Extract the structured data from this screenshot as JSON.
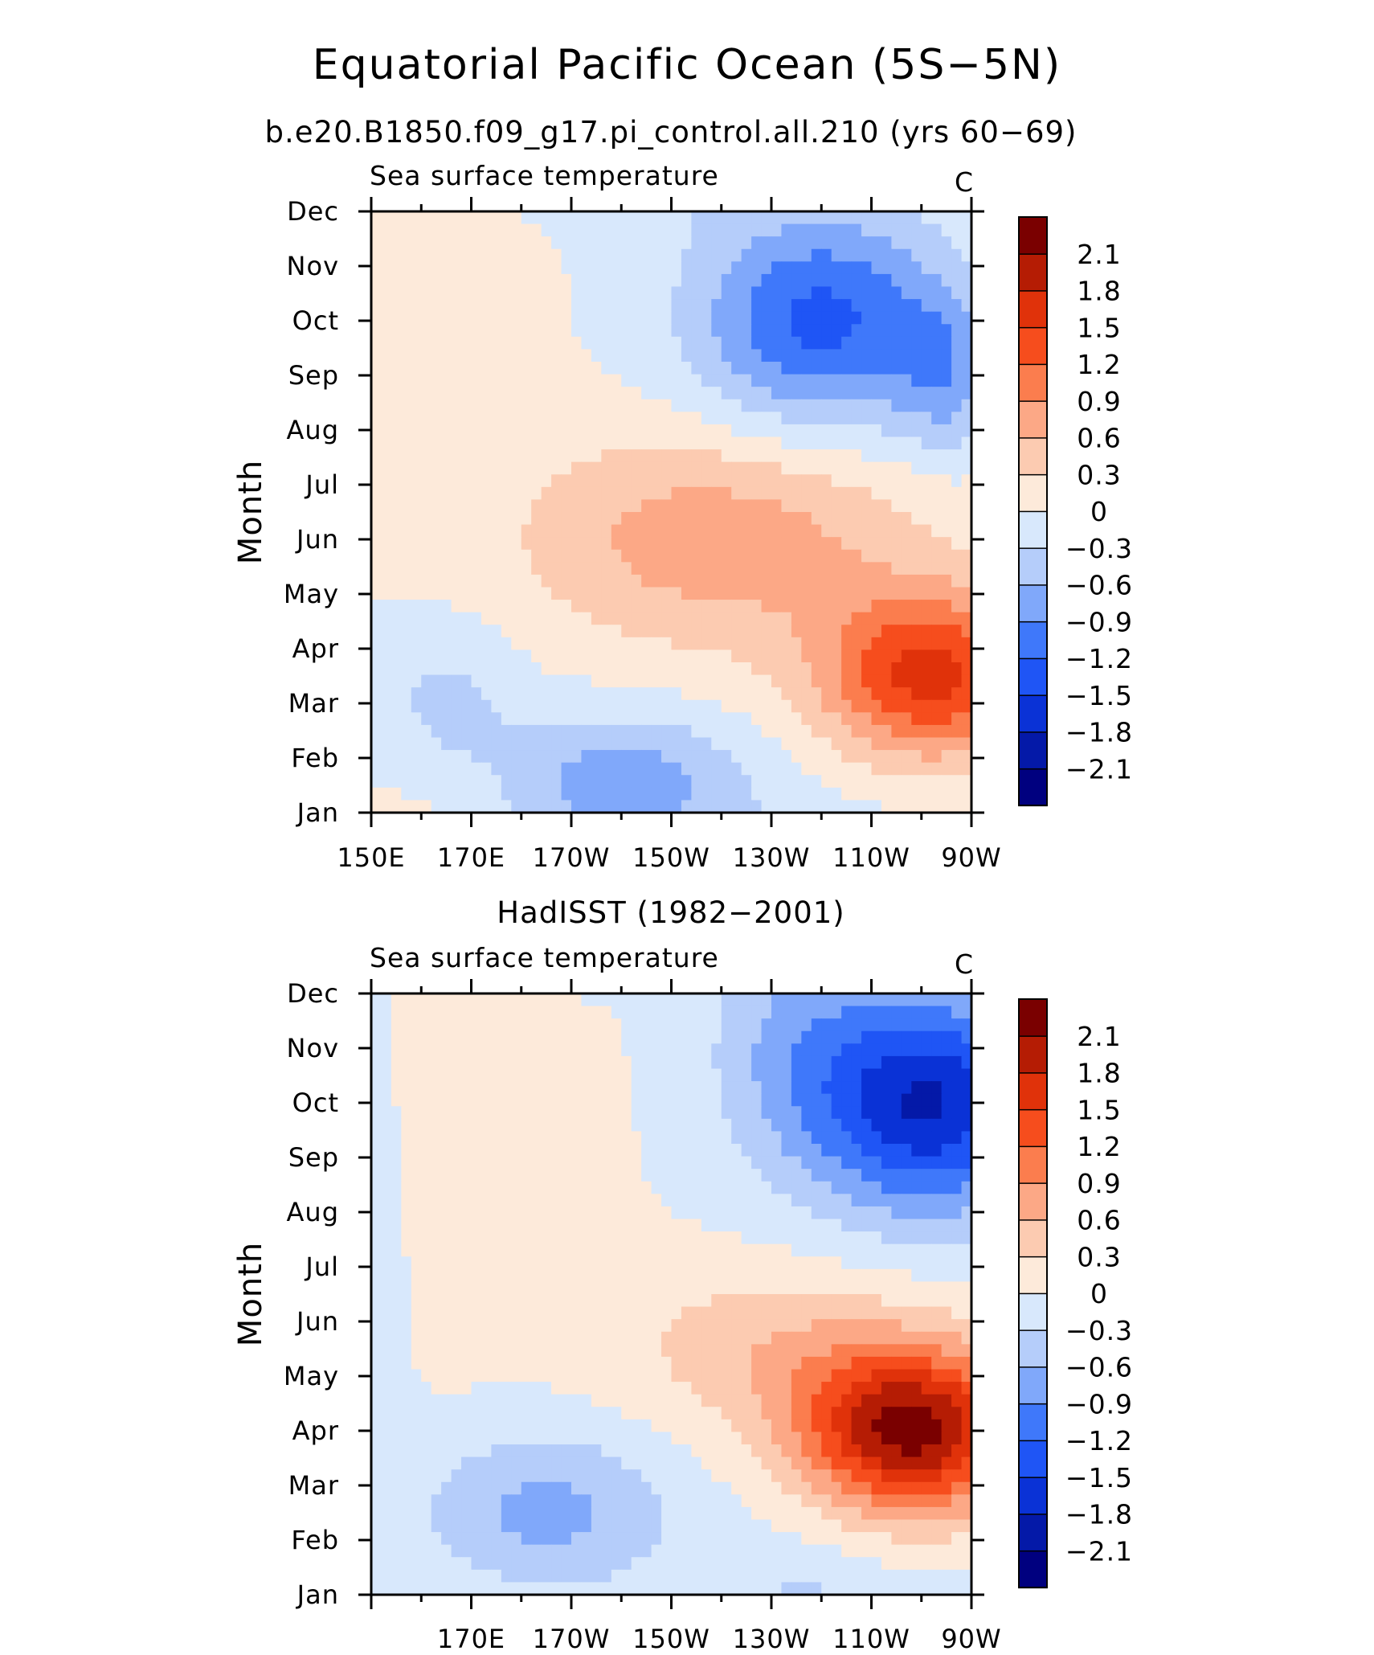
{
  "figure": {
    "title": "Equatorial Pacific Ocean (5S−5N)",
    "subtitle": "b.e20.B1850.f09_g17.pi_control.all.210 (yrs 60−69)"
  },
  "chart_data": [
    {
      "type": "heatmap",
      "panel_title": "",
      "left_label": "Sea surface temperature",
      "units": "C",
      "ylabel": "Month",
      "xlabel": "",
      "x_range_deg_east": [
        150,
        270
      ],
      "x_tick_labels": [
        "150E",
        "170E",
        "170W",
        "150W",
        "130W",
        "110W",
        "90W"
      ],
      "y_tick_labels": [
        "Jan",
        "Feb",
        "Mar",
        "Apr",
        "May",
        "Jun",
        "Jul",
        "Aug",
        "Sep",
        "Oct",
        "Nov",
        "Dec"
      ],
      "contour_levels": [
        -2.1,
        -1.8,
        -1.5,
        -1.2,
        -0.9,
        -0.6,
        -0.3,
        0,
        0.3,
        0.6,
        0.9,
        1.2,
        1.5,
        1.8,
        2.1
      ],
      "colorbar_labels": [
        "2.1",
        "1.8",
        "1.5",
        "1.2",
        "0.9",
        "0.6",
        "0.3",
        "0",
        "−0.3",
        "−0.6",
        "−0.9",
        "−1.2",
        "−1.5",
        "−1.8",
        "−2.1"
      ],
      "colors": [
        "#00007f",
        "#0419a8",
        "#0a32d6",
        "#1f55f5",
        "#3f78fa",
        "#80a8fa",
        "#b5cdfa",
        "#d8e8fc",
        "#fdeada",
        "#fccbb1",
        "#fca886",
        "#fb7d4e",
        "#f64d1d",
        "#e0320a",
        "#b51c04",
        "#7a0000"
      ],
      "anomalies": [
        {
          "lon": 165,
          "month": 12,
          "value": 0.2,
          "spread_lon": 18,
          "spread_month": 2.5
        },
        {
          "lon": 240,
          "month": 10,
          "value": -1.3,
          "spread_lon": 25,
          "spread_month": 2.0
        },
        {
          "lon": 265,
          "month": 9,
          "value": -0.6,
          "spread_lon": 10,
          "spread_month": 1.5
        },
        {
          "lon": 220,
          "month": 6,
          "value": 0.8,
          "spread_lon": 40,
          "spread_month": 2.0
        },
        {
          "lon": 262,
          "month": 3.5,
          "value": 1.6,
          "spread_lon": 22,
          "spread_month": 1.5
        },
        {
          "lon": 200,
          "month": 1.5,
          "value": -0.8,
          "spread_lon": 25,
          "spread_month": 1.3
        },
        {
          "lon": 165,
          "month": 3,
          "value": -0.4,
          "spread_lon": 15,
          "spread_month": 1.5
        }
      ]
    },
    {
      "type": "heatmap",
      "panel_title": "HadISST (1982−2001)",
      "left_label": "Sea surface temperature",
      "units": "C",
      "ylabel": "Month",
      "xlabel": "",
      "x_range_deg_east": [
        150,
        270
      ],
      "x_tick_labels": [
        "170E",
        "170W",
        "150W",
        "130W",
        "110W",
        "90W"
      ],
      "y_tick_labels": [
        "Jan",
        "Feb",
        "Mar",
        "Apr",
        "May",
        "Jun",
        "Jul",
        "Aug",
        "Sep",
        "Oct",
        "Nov",
        "Dec"
      ],
      "contour_levels": [
        -2.1,
        -1.8,
        -1.5,
        -1.2,
        -0.9,
        -0.6,
        -0.3,
        0,
        0.3,
        0.6,
        0.9,
        1.2,
        1.5,
        1.8,
        2.1
      ],
      "colorbar_labels": [
        "2.1",
        "1.8",
        "1.5",
        "1.2",
        "0.9",
        "0.6",
        "0.3",
        "0",
        "−0.3",
        "−0.6",
        "−0.9",
        "−1.2",
        "−1.5",
        "−1.8",
        "−2.1"
      ],
      "colors": [
        "#00007f",
        "#0419a8",
        "#0a32d6",
        "#1f55f5",
        "#3f78fa",
        "#80a8fa",
        "#b5cdfa",
        "#d8e8fc",
        "#fdeada",
        "#fccbb1",
        "#fca886",
        "#fb7d4e",
        "#f64d1d",
        "#e0320a",
        "#b51c04",
        "#7a0000"
      ],
      "anomalies": [
        {
          "lon": 170,
          "month": 9,
          "value": 0.3,
          "spread_lon": 20,
          "spread_month": 3.0
        },
        {
          "lon": 262,
          "month": 10,
          "value": -1.8,
          "spread_lon": 22,
          "spread_month": 2.0
        },
        {
          "lon": 235,
          "month": 11,
          "value": -0.6,
          "spread_lon": 18,
          "spread_month": 2.5
        },
        {
          "lon": 258,
          "month": 4,
          "value": 2.2,
          "spread_lon": 22,
          "spread_month": 1.5
        },
        {
          "lon": 230,
          "month": 5.5,
          "value": 0.5,
          "spread_lon": 30,
          "spread_month": 1.5
        },
        {
          "lon": 185,
          "month": 2.5,
          "value": -0.7,
          "spread_lon": 25,
          "spread_month": 1.5
        },
        {
          "lon": 152,
          "month": 8,
          "value": -0.3,
          "spread_lon": 6,
          "spread_month": 3.0
        }
      ]
    }
  ]
}
